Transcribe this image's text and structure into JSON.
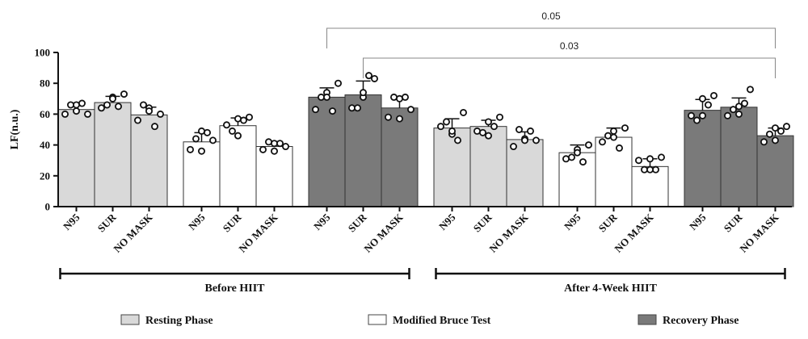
{
  "chart_data": {
    "type": "bar",
    "ylabel": "LF(n.u.)",
    "ylim": [
      0,
      100
    ],
    "yticks": [
      0,
      20,
      40,
      60,
      80,
      100
    ],
    "categories": [
      "N95",
      "SUR",
      "NO MASK",
      "N95",
      "SUR",
      "NO MASK",
      "N95",
      "SUR",
      "NO MASK",
      "N95",
      "SUR",
      "NO MASK",
      "N95",
      "SUR",
      "NO MASK",
      "N95",
      "SUR",
      "NO MASK"
    ],
    "values": [
      63,
      67.5,
      59.5,
      42,
      52.5,
      39,
      71,
      72.5,
      64,
      51,
      52,
      43.5,
      35,
      45,
      26,
      62.5,
      64.5,
      46
    ],
    "errors": [
      4,
      4,
      5,
      6,
      5,
      3,
      6,
      9,
      6,
      6,
      4,
      5,
      5,
      6,
      5,
      7,
      6,
      5
    ],
    "phases": [
      "Resting Phase",
      "Resting Phase",
      "Resting Phase",
      "Modified Bruce Test",
      "Modified Bruce Test",
      "Modified Bruce Test",
      "Recovery Phase",
      "Recovery Phase",
      "Recovery Phase",
      "Resting Phase",
      "Resting Phase",
      "Resting Phase",
      "Modified Bruce Test",
      "Modified Bruce Test",
      "Modified Bruce Test",
      "Recovery Phase",
      "Recovery Phase",
      "Recovery Phase"
    ],
    "points": [
      [
        60,
        66,
        60,
        66,
        67,
        62
      ],
      [
        64,
        71,
        73,
        66,
        65,
        70
      ],
      [
        56,
        64,
        60,
        66,
        52,
        62
      ],
      [
        37,
        49,
        43,
        44,
        48,
        36
      ],
      [
        53,
        57,
        58,
        49,
        56,
        46
      ],
      [
        37,
        41,
        39,
        42,
        41,
        36
      ],
      [
        63,
        74,
        80,
        71,
        62,
        71
      ],
      [
        64,
        71,
        83,
        64,
        85,
        74
      ],
      [
        58,
        70,
        63,
        71,
        71,
        57
      ],
      [
        52,
        47,
        61,
        55,
        43,
        49
      ],
      [
        49,
        55,
        58,
        48,
        52,
        46
      ],
      [
        39,
        44,
        43,
        50,
        49,
        43
      ],
      [
        31,
        37,
        40,
        32,
        29,
        35
      ],
      [
        42,
        49,
        51,
        46,
        38,
        45
      ],
      [
        30,
        31,
        32,
        24,
        24,
        24
      ],
      [
        59,
        70,
        72,
        56,
        66,
        59
      ],
      [
        59,
        65,
        76,
        63,
        67,
        60
      ],
      [
        42,
        51,
        52,
        47,
        49,
        43
      ]
    ],
    "colors": {
      "Resting Phase": "#d9d9d9",
      "Modified Bruce Test": "#ffffff",
      "Recovery Phase": "#7a7a7a"
    },
    "legend": [
      {
        "label": "Resting Phase",
        "color": "#d9d9d9"
      },
      {
        "label": "Modified Bruce Test",
        "color": "#ffffff"
      },
      {
        "label": "Recovery Phase",
        "color": "#7a7a7a"
      }
    ],
    "groups": [
      {
        "label": "Before HIIT",
        "from": 0,
        "to": 8
      },
      {
        "label": "After 4-Week HIIT",
        "from": 9,
        "to": 17
      }
    ],
    "significance": [
      {
        "label": "0.05",
        "from": 6,
        "to": 17
      },
      {
        "label": "0.03",
        "from": 7,
        "to": 17
      }
    ]
  }
}
